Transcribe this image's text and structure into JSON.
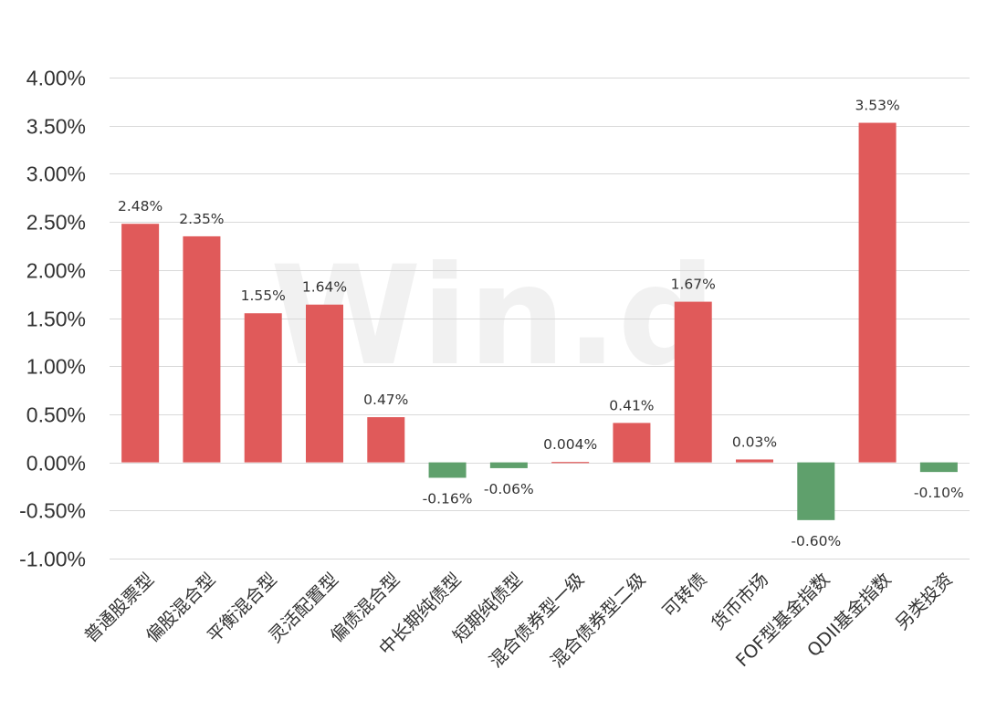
{
  "chart_data": {
    "type": "bar",
    "title": "",
    "xlabel": "",
    "ylabel": "",
    "ylim": [
      -1.0,
      4.0
    ],
    "y_ticks": [
      4.0,
      3.5,
      3.0,
      2.5,
      2.0,
      1.5,
      1.0,
      0.5,
      0.0,
      -0.5,
      -1.0
    ],
    "y_tick_labels": [
      "4.00%",
      "3.50%",
      "3.00%",
      "2.50%",
      "2.00%",
      "1.50%",
      "1.00%",
      "0.50%",
      "0.00%",
      "-0.50%",
      "-1.00%"
    ],
    "grid": true,
    "legend": "none",
    "watermark": "Win.d",
    "positive_color": "#e05a5a",
    "negative_color": "#5fa06c",
    "categories": [
      "普通股票型",
      "偏股混合型",
      "平衡混合型",
      "灵活配置型",
      "偏债混合型",
      "中长期纯债型",
      "短期纯债型",
      "混合债券型一级",
      "混合债券型二级",
      "可转债",
      "货币市场",
      "FOF型基金指数",
      "QDII基金指数",
      "另类投资"
    ],
    "values": [
      2.48,
      2.35,
      1.55,
      1.64,
      0.47,
      -0.16,
      -0.06,
      0.004,
      0.41,
      1.67,
      0.03,
      -0.6,
      3.53,
      -0.1
    ],
    "data_labels": [
      "2.48%",
      "2.35%",
      "1.55%",
      "1.64%",
      "0.47%",
      "-0.16%",
      "-0.06%",
      "0.004%",
      "0.41%",
      "1.67%",
      "0.03%",
      "-0.60%",
      "3.53%",
      "-0.10%"
    ]
  }
}
